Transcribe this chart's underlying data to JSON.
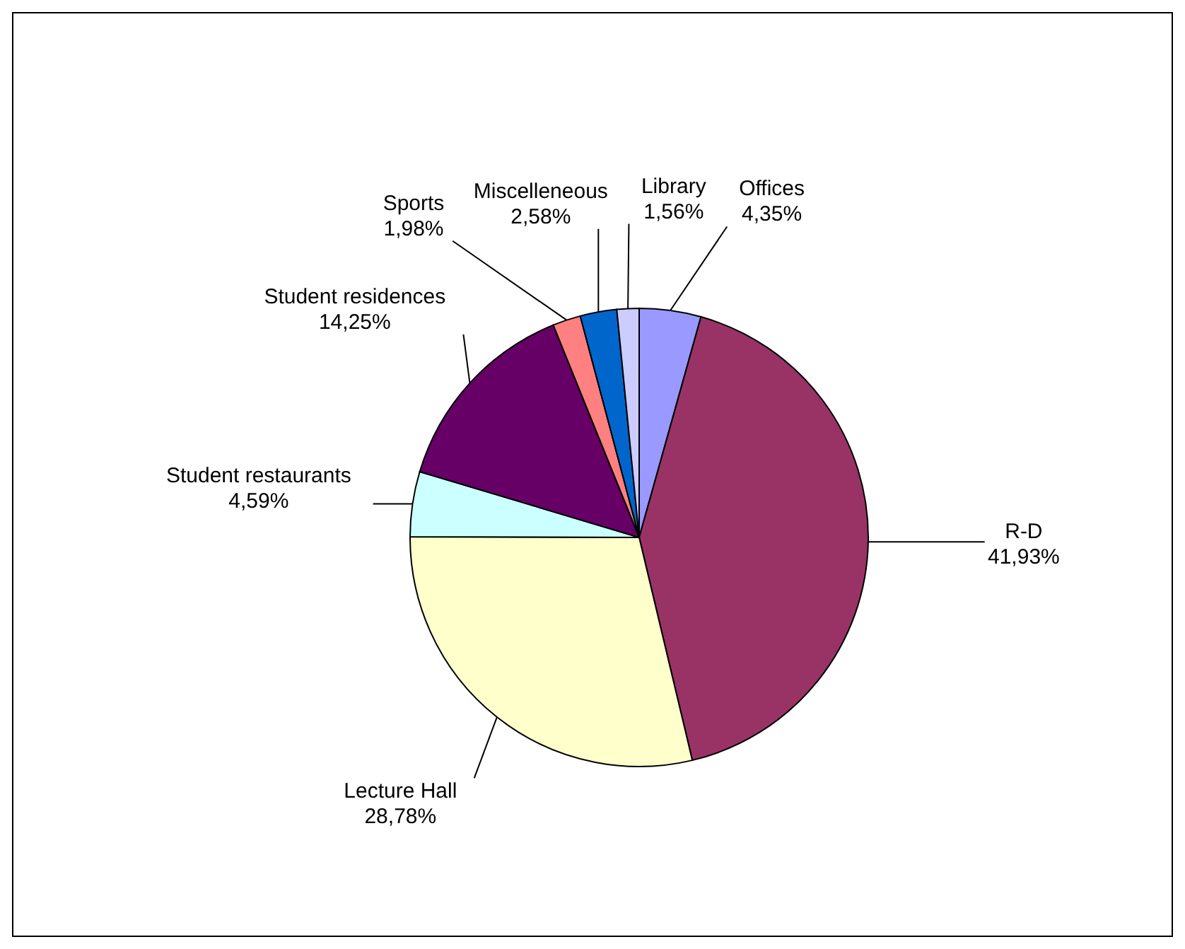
{
  "chart_data": {
    "type": "pie",
    "categories": [
      "Offices",
      "R-D",
      "Lecture Hall",
      "Student restaurants",
      "Student residences",
      "Sports",
      "Miscelleneous",
      "Library"
    ],
    "values": [
      4.35,
      41.93,
      28.78,
      4.59,
      14.25,
      1.98,
      2.58,
      1.56
    ],
    "value_labels": [
      "4,35%",
      "41,93%",
      "28,78%",
      "4,59%",
      "14,25%",
      "1,98%",
      "2,58%",
      "1,56%"
    ],
    "colors": [
      "#9999ff",
      "#993366",
      "#ffffcc",
      "#ccffff",
      "#660066",
      "#ff8080",
      "#0066cc",
      "#ccccff"
    ],
    "legend": false
  }
}
